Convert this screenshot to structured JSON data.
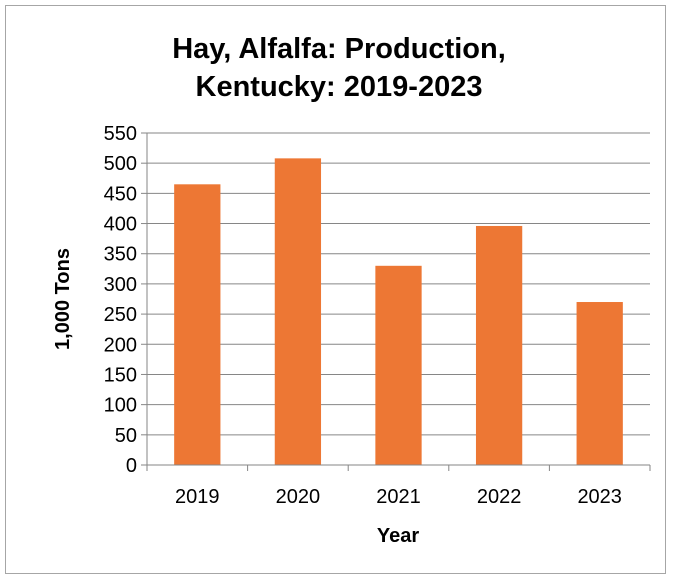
{
  "chart_data": {
    "type": "bar",
    "title_lines": [
      "Hay, Alfalfa: Production,",
      "Kentucky: 2019-2023"
    ],
    "categories": [
      "2019",
      "2020",
      "2021",
      "2022",
      "2023"
    ],
    "values": [
      465,
      508,
      330,
      396,
      270
    ],
    "xlabel": "Year",
    "ylabel": "1,000 Tons",
    "ylim": [
      0,
      550
    ],
    "ytick_step": 50,
    "grid": true,
    "legend": "none",
    "bar_color": "#ed7734",
    "grid_color": "#868686"
  }
}
